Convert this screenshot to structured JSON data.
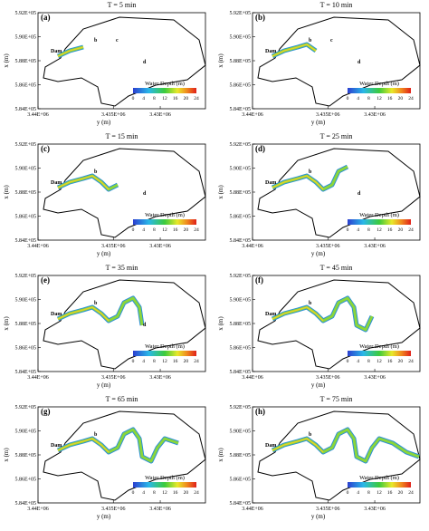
{
  "x_axis_label": "y (m)",
  "y_axis_label": "x (m)",
  "x_tick_labels": [
    "3.44E+06",
    "3.435E+06",
    "3.43E+06"
  ],
  "y_tick_labels": [
    "5.92E+05",
    "5.90E+05",
    "5.88E+05",
    "5.86E+05",
    "5.84E+05"
  ],
  "colorbar": {
    "title": "Water Depth (m)",
    "ticks": [
      "0",
      "4",
      "8",
      "12",
      "16",
      "20",
      "24"
    ]
  },
  "panels": [
    {
      "title": "T = 5 min",
      "label": "(a)",
      "sites": [
        "Dam",
        "b",
        "c",
        "d"
      ]
    },
    {
      "title": "T = 10 min",
      "label": "(b)",
      "sites": [
        "Dam",
        "b",
        "c",
        "d"
      ]
    },
    {
      "title": "T = 15 min",
      "label": "(c)",
      "sites": [
        "Dam",
        "b",
        "d"
      ]
    },
    {
      "title": "T = 25 min",
      "label": "(d)",
      "sites": [
        "Dam",
        "b",
        "d"
      ]
    },
    {
      "title": "T = 35 min",
      "label": "(e)",
      "sites": [
        "Dam",
        "b",
        "d"
      ]
    },
    {
      "title": "T = 45 min",
      "label": "(f)",
      "sites": [
        "Dam",
        "b"
      ]
    },
    {
      "title": "T = 65 min",
      "label": "(g)",
      "sites": [
        "Dam",
        "b"
      ]
    },
    {
      "title": "T = 75 min",
      "label": "(h)",
      "sites": [
        "Dam",
        "b"
      ]
    }
  ]
}
